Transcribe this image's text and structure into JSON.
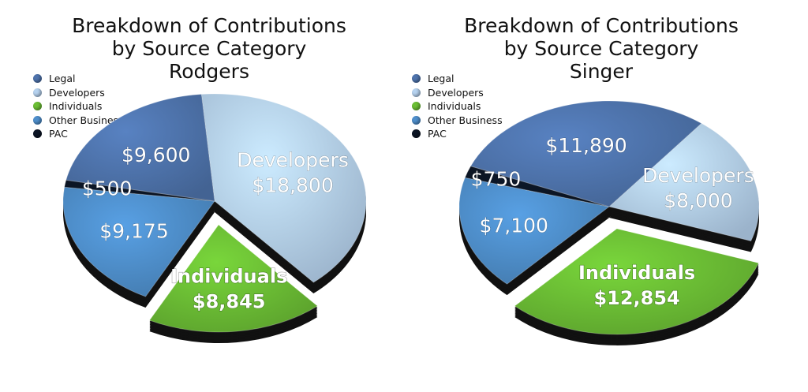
{
  "colors": {
    "Legal": "#4f74ad",
    "Developers": "#b6d2ef",
    "Individuals": "#6cbf35",
    "Other Business": "#4f8fcc",
    "PAC": "#0c1525"
  },
  "legend": {
    "items": [
      "Legal",
      "Developers",
      "Individuals",
      "Other Business",
      "PAC"
    ]
  },
  "chart_data": [
    {
      "type": "pie",
      "title": [
        "Breakdown of Contributions",
        "by Source Category",
        "Rodgers"
      ],
      "slices": [
        {
          "category": "Developers",
          "value": 18800,
          "label_lines": [
            "Developers",
            "$18,800"
          ]
        },
        {
          "category": "Individuals",
          "value": 8845,
          "label_lines": [
            "Individuals",
            "$8,845"
          ]
        },
        {
          "category": "Other Business",
          "value": 9175,
          "label_lines": [
            "$9,175"
          ]
        },
        {
          "category": "PAC",
          "value": 500,
          "label_lines": [
            "$500"
          ]
        },
        {
          "category": "Legal",
          "value": 9600,
          "label_lines": [
            "$9,600"
          ]
        }
      ],
      "exploded": "Individuals",
      "legend_position": "top-left"
    },
    {
      "type": "pie",
      "title": [
        "Breakdown of Contributions",
        "by Source Category",
        "Singer"
      ],
      "slices": [
        {
          "category": "Developers",
          "value": 8000,
          "label_lines": [
            "Developers",
            "$8,000"
          ]
        },
        {
          "category": "Individuals",
          "value": 12854,
          "label_lines": [
            "Individuals",
            "$12,854"
          ]
        },
        {
          "category": "Other Business",
          "value": 7100,
          "label_lines": [
            "$7,100"
          ]
        },
        {
          "category": "PAC",
          "value": 750,
          "label_lines": [
            "$750"
          ]
        },
        {
          "category": "Legal",
          "value": 11890,
          "label_lines": [
            "$11,890"
          ]
        }
      ],
      "exploded": "Individuals",
      "legend_position": "top-left"
    }
  ]
}
